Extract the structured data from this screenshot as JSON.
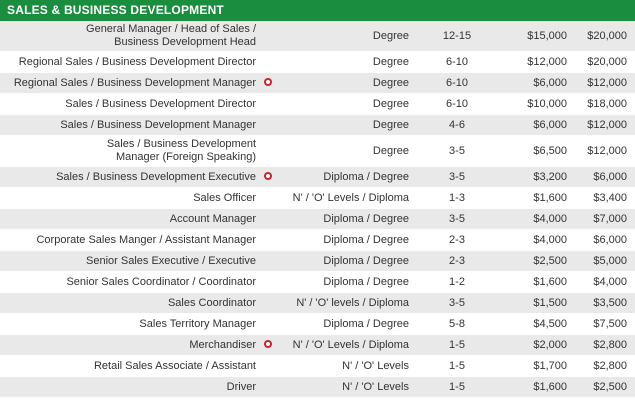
{
  "section": {
    "title": "SALES & BUSINESS DEVELOPMENT"
  },
  "rows": [
    {
      "position": "General Manager / Head of Sales / Business Development Head",
      "position_lines": [
        "General Manager / Head of Sales /",
        "Business Development Head"
      ],
      "marked": false,
      "education": "Degree",
      "experience": "12-15",
      "salary_min": "$15,000",
      "salary_max": "$20,000"
    },
    {
      "position": "Regional Sales / Business Development Director",
      "marked": false,
      "education": "Degree",
      "experience": "6-10",
      "salary_min": "$12,000",
      "salary_max": "$20,000"
    },
    {
      "position": "Regional Sales / Business Development Manager",
      "marked": true,
      "education": "Degree",
      "experience": "6-10",
      "salary_min": "$6,000",
      "salary_max": "$12,000"
    },
    {
      "position": "Sales / Business Development Director",
      "marked": false,
      "education": "Degree",
      "experience": "6-10",
      "salary_min": "$10,000",
      "salary_max": "$18,000"
    },
    {
      "position": "Sales / Business Development Manager",
      "marked": false,
      "education": "Degree",
      "experience": "4-6",
      "salary_min": "$6,000",
      "salary_max": "$12,000"
    },
    {
      "position": "Sales / Business Development Manager (Foreign Speaking)",
      "position_lines": [
        "Sales / Business Development",
        "Manager (Foreign Speaking)"
      ],
      "marked": false,
      "education": "Degree",
      "experience": "3-5",
      "salary_min": "$6,500",
      "salary_max": "$12,000"
    },
    {
      "position": "Sales / Business Development Executive",
      "marked": true,
      "education": "Diploma / Degree",
      "experience": "3-5",
      "salary_min": "$3,200",
      "salary_max": "$6,000"
    },
    {
      "position": "Sales Officer",
      "marked": false,
      "education": "N' / 'O' Levels / Diploma",
      "experience": "1-3",
      "salary_min": "$1,600",
      "salary_max": "$3,400"
    },
    {
      "position": "Account Manager",
      "marked": false,
      "education": "Diploma / Degree",
      "experience": "3-5",
      "salary_min": "$4,000",
      "salary_max": "$7,000"
    },
    {
      "position": "Corporate Sales Manger / Assistant Manager",
      "marked": false,
      "education": "Diploma / Degree",
      "experience": "2-3",
      "salary_min": "$4,000",
      "salary_max": "$6,000"
    },
    {
      "position": "Senior Sales Executive / Executive",
      "marked": false,
      "education": "Diploma / Degree",
      "experience": "2-3",
      "salary_min": "$2,500",
      "salary_max": "$5,000"
    },
    {
      "position": "Senior Sales Coordinator / Coordinator",
      "marked": false,
      "education": "Diploma / Degree",
      "experience": "1-2",
      "salary_min": "$1,600",
      "salary_max": "$4,000"
    },
    {
      "position": "Sales Coordinator",
      "marked": false,
      "education": "N' / 'O' levels / Diploma",
      "experience": "3-5",
      "salary_min": "$1,500",
      "salary_max": "$3,500"
    },
    {
      "position": "Sales Territory Manager",
      "marked": false,
      "education": "Diploma / Degree",
      "experience": "5-8",
      "salary_min": "$4,500",
      "salary_max": "$7,500"
    },
    {
      "position": "Merchandiser",
      "marked": true,
      "education": "N' / 'O' Levels / Diploma",
      "experience": "1-5",
      "salary_min": "$2,000",
      "salary_max": "$2,800"
    },
    {
      "position": "Retail Sales Associate / Assistant",
      "marked": false,
      "education": "N' / 'O' Levels",
      "experience": "1-5",
      "salary_min": "$1,700",
      "salary_max": "$2,800"
    },
    {
      "position": "Driver",
      "marked": false,
      "education": "N' / 'O' Levels",
      "experience": "1-5",
      "salary_min": "$1,600",
      "salary_max": "$2,500"
    }
  ],
  "colors": {
    "header_bg": "#1b8d3f",
    "row_shade": "#e9e9ea",
    "marker": "#c9252c"
  },
  "marker_icon": "red-circle-icon"
}
